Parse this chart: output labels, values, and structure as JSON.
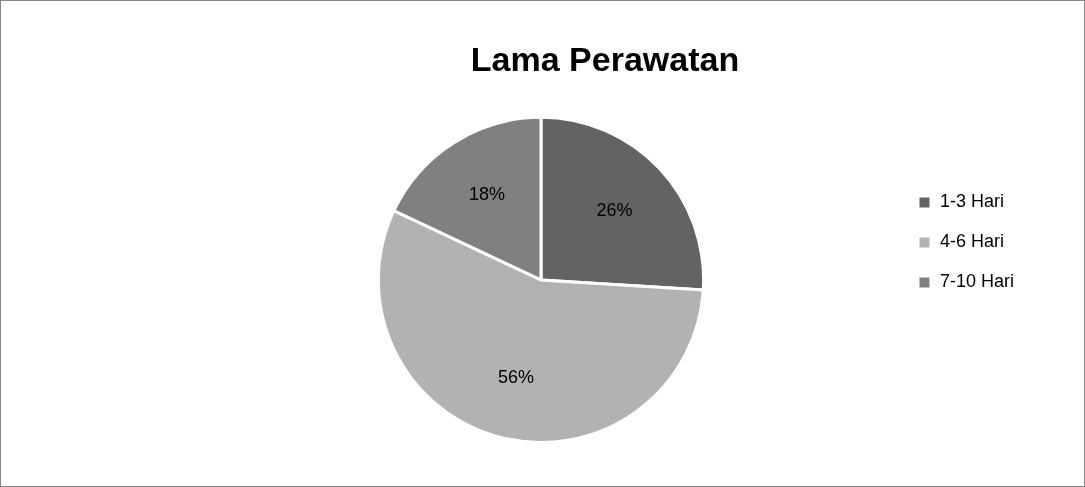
{
  "chart_data": {
    "type": "pie",
    "title": "Lama Perawatan",
    "categories": [
      "1-3 Hari",
      "4-6 Hari",
      "7-10 Hari"
    ],
    "values": [
      26,
      56,
      18
    ],
    "value_labels": [
      "26%",
      "56%",
      "18%"
    ],
    "colors": [
      "#636363",
      "#b2b2b2",
      "#808080"
    ],
    "legend": "right"
  }
}
